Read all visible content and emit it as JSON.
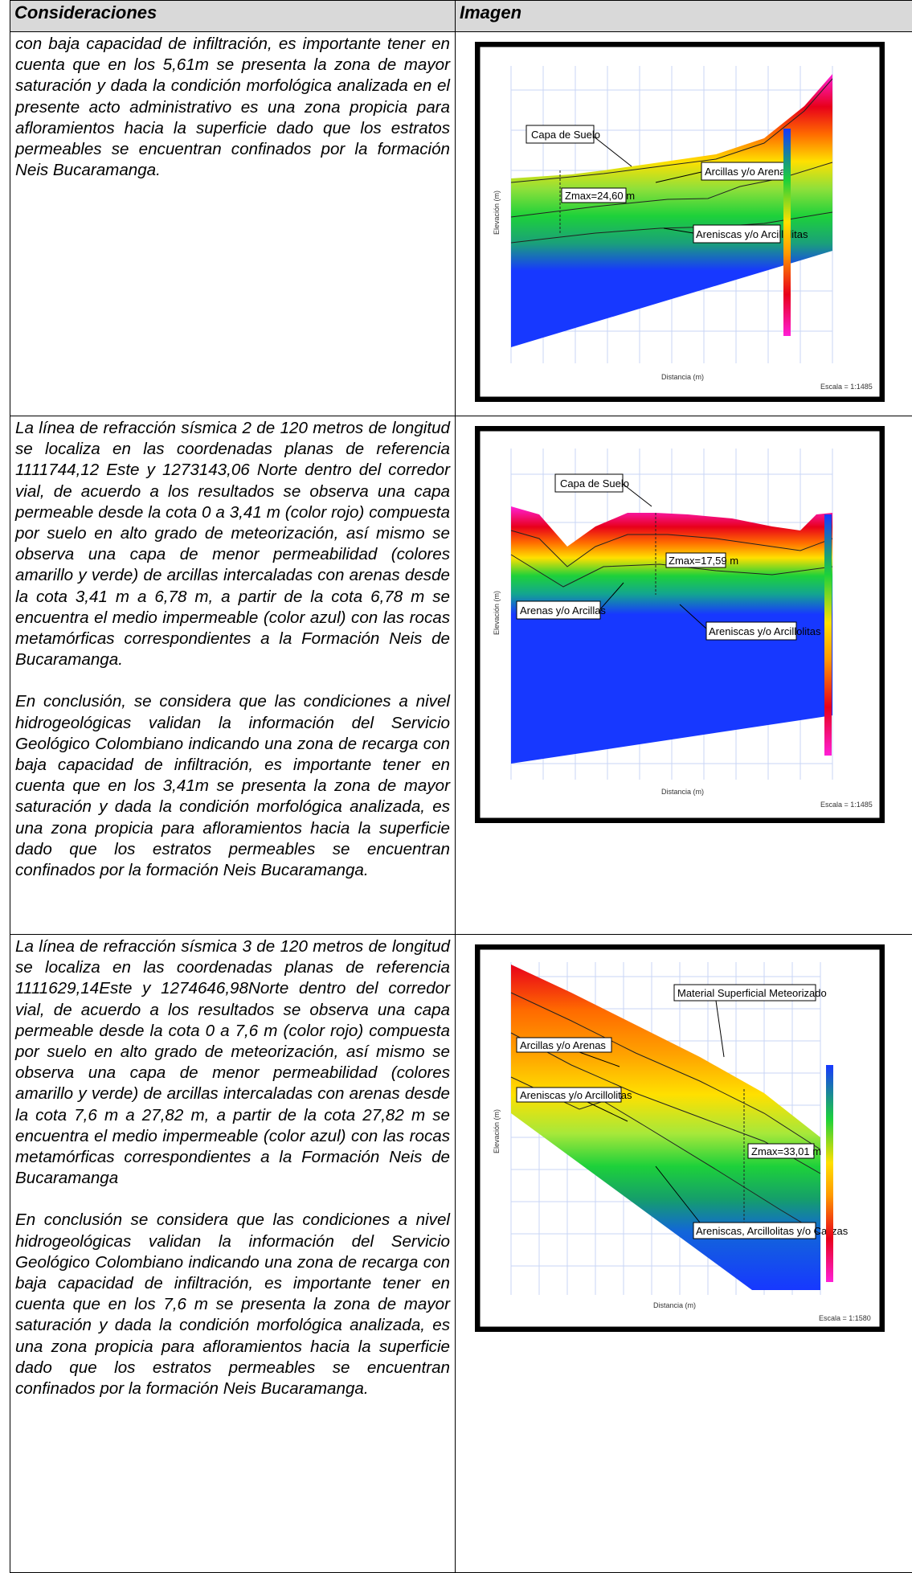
{
  "table": {
    "headers": [
      "Consideraciones",
      "Imagen"
    ],
    "rows": [
      {
        "paragraphs": [
          "con baja capacidad de infiltración, es importante tener en cuenta que en los 5,61m se presenta la zona de mayor saturación y dada la condición morfológica analizada en el presente acto administrativo es una zona propicia para afloramientos hacia la superficie dado que los estratos permeables se encuentran confinados por la formación Neis Bucaramanga."
        ],
        "figure": {
          "annotations": [
            "Capa de Suelo",
            "Arcillas y/o Arenas",
            "Zmax=24,60 m",
            "Areniscas y/o Arcillolitas"
          ],
          "x_axis_label": "Distancia (m)",
          "y_axis_label": "Elevación (m)",
          "scale": "Escala = 1:1485"
        }
      },
      {
        "paragraphs": [
          "La línea de refracción sísmica 2 de 120 metros de longitud se localiza en las coordenadas planas de referencia 1111744,12 Este y 1273143,06 Norte dentro del corredor vial, de acuerdo a los resultados se observa una capa permeable desde la cota 0 a 3,41 m (color rojo) compuesta por suelo en alto grado de meteorización, así mismo se observa una capa de menor permeabilidad (colores amarillo y verde) de arcillas intercaladas con arenas desde la cota 3,41 m a 6,78 m, a partir de la cota 6,78  m se encuentra el medio impermeable (color azul) con las rocas metamórficas correspondientes a la Formación Neis de Bucaramanga.",
          "En conclusión, se considera que las condiciones a nivel hidrogeológicas validan la información del Servicio Geológico Colombiano indicando una zona de recarga con baja capacidad de infiltración, es importante tener en cuenta que en los 3,41m se presenta la zona de mayor saturación y dada la condición morfológica analizada, es una zona propicia para afloramientos hacia la superficie dado que los estratos permeables se encuentran confinados por la formación Neis Bucaramanga."
        ],
        "figure": {
          "annotations": [
            "Capa de Suelo",
            "Zmax=17,59 m",
            "Arenas y/o Arcillas",
            "Areniscas y/o Arcillolitas"
          ],
          "x_axis_label": "Distancia (m)",
          "y_axis_label": "Elevación (m)",
          "scale": "Escala = 1:1485"
        }
      },
      {
        "paragraphs": [
          "La línea de refracción sísmica 3 de 120 metros de longitud se localiza en las coordenadas planas de referencia 1111629,14Este y 1274646,98Norte dentro del corredor vial, de acuerdo a los resultados se observa una capa permeable desde la cota 0 a 7,6 m (color rojo) compuesta por suelo en alto grado de meteorización, así mismo se observa una capa de menor permeabilidad (colores amarillo y verde) de arcillas intercaladas con arenas desde la cota 7,6 m a 27,82 m, a partir de la cota 27,82 m se encuentra el medio impermeable (color azul) con las rocas metamórficas correspondientes a la Formación Neis de Bucaramanga",
          "En conclusión se considera que las condiciones a nivel hidrogeológicas validan la información del Servicio Geológico Colombiano indicando una zona de recarga con baja capacidad de infiltración, es importante tener en cuenta que en los 7,6 m se presenta la zona de mayor saturación y dada la condición morfológica analizada, es una zona propicia para afloramientos hacia la superficie dado que los estratos permeables se encuentran confinados por la formación Neis Bucaramanga."
        ],
        "figure": {
          "annotations": [
            "Material Superficial Meteorizado",
            "Arcillas y/o Arenas",
            "Areniscas y/o Arcillolitas",
            "Zmax=33,01 m",
            "Areniscas, Arcillolitas  y/o Calizas"
          ],
          "x_axis_label": "Distancia (m)",
          "y_axis_label": "Elevación (m)",
          "scale": "Escala = 1:1580"
        }
      }
    ]
  },
  "colors": {
    "header_bg": "#d9d9d9",
    "frame": "#000000",
    "soil_red": "#e8001a",
    "magenta": "#ff1fd6",
    "yellow": "#ffe000",
    "green": "#1dd13a",
    "blue": "#1738ff"
  }
}
